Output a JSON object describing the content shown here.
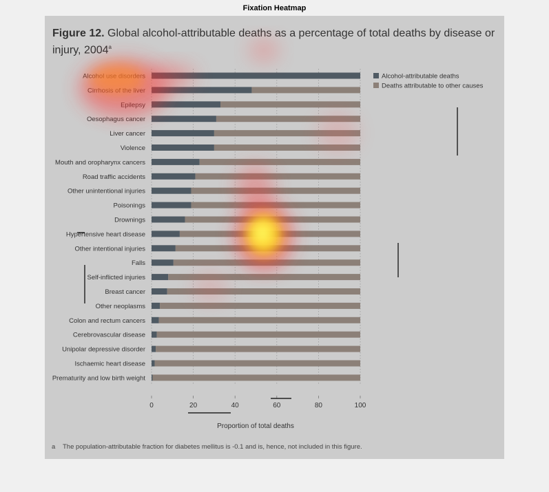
{
  "window": {
    "title": "Fixation Heatmap"
  },
  "figure": {
    "label": "Figure 12.",
    "title": "Global alcohol-attributable deaths as a percentage of total deaths by disease or injury, 2004",
    "title_sup": "a",
    "footnote_mark": "a",
    "footnote": "The population-attributable fraction for diabetes mellitus is -0.1 and is, hence, not included in this figure."
  },
  "colors": {
    "alcohol": "#4f5a63",
    "other": "#8c8078",
    "panel": "#cccccc"
  },
  "chart_data": {
    "type": "bar",
    "orientation": "horizontal",
    "stacked": true,
    "categories": [
      "Alcohol use disorders",
      "Cirrhosis of the liver",
      "Epilepsy",
      "Oesophagus cancer",
      "Liver cancer",
      "Violence",
      "Mouth and oropharynx cancers",
      "Road traffic accidents",
      "Other unintentional injuries",
      "Poisonings",
      "Drownings",
      "Hypertensive heart disease",
      "Other intentional injuries",
      "Falls",
      "Self-inflicted injuries",
      "Breast cancer",
      "Other neoplasms",
      "Colon and rectum cancers",
      "Cerebrovascular disease",
      "Unipolar depressive disorder",
      "Ischaemic heart disease",
      "Prematurity and low birth weight"
    ],
    "series": [
      {
        "name": "Alcohol-attributable deaths",
        "values": [
          100,
          48,
          33,
          31,
          30,
          30,
          23,
          21,
          19,
          19,
          16,
          13.5,
          11.5,
          10.5,
          8,
          7.5,
          4,
          3.5,
          2.5,
          2,
          1.5,
          0.5
        ]
      },
      {
        "name": "Deaths attributable to other causes",
        "values": [
          0,
          52,
          67,
          69,
          70,
          70,
          77,
          79,
          81,
          81,
          84,
          86.5,
          88.5,
          89.5,
          92,
          92.5,
          96,
          96.5,
          97.5,
          98,
          98.5,
          99.5
        ]
      }
    ],
    "xlabel": "Proportion of total deaths",
    "xticks": [
      "0",
      "20",
      "40",
      "60",
      "80",
      "100"
    ],
    "xlim": [
      0,
      100
    ],
    "grid": "vertical dotted",
    "legend": "top-right",
    "overlay": "fixation heatmap"
  }
}
